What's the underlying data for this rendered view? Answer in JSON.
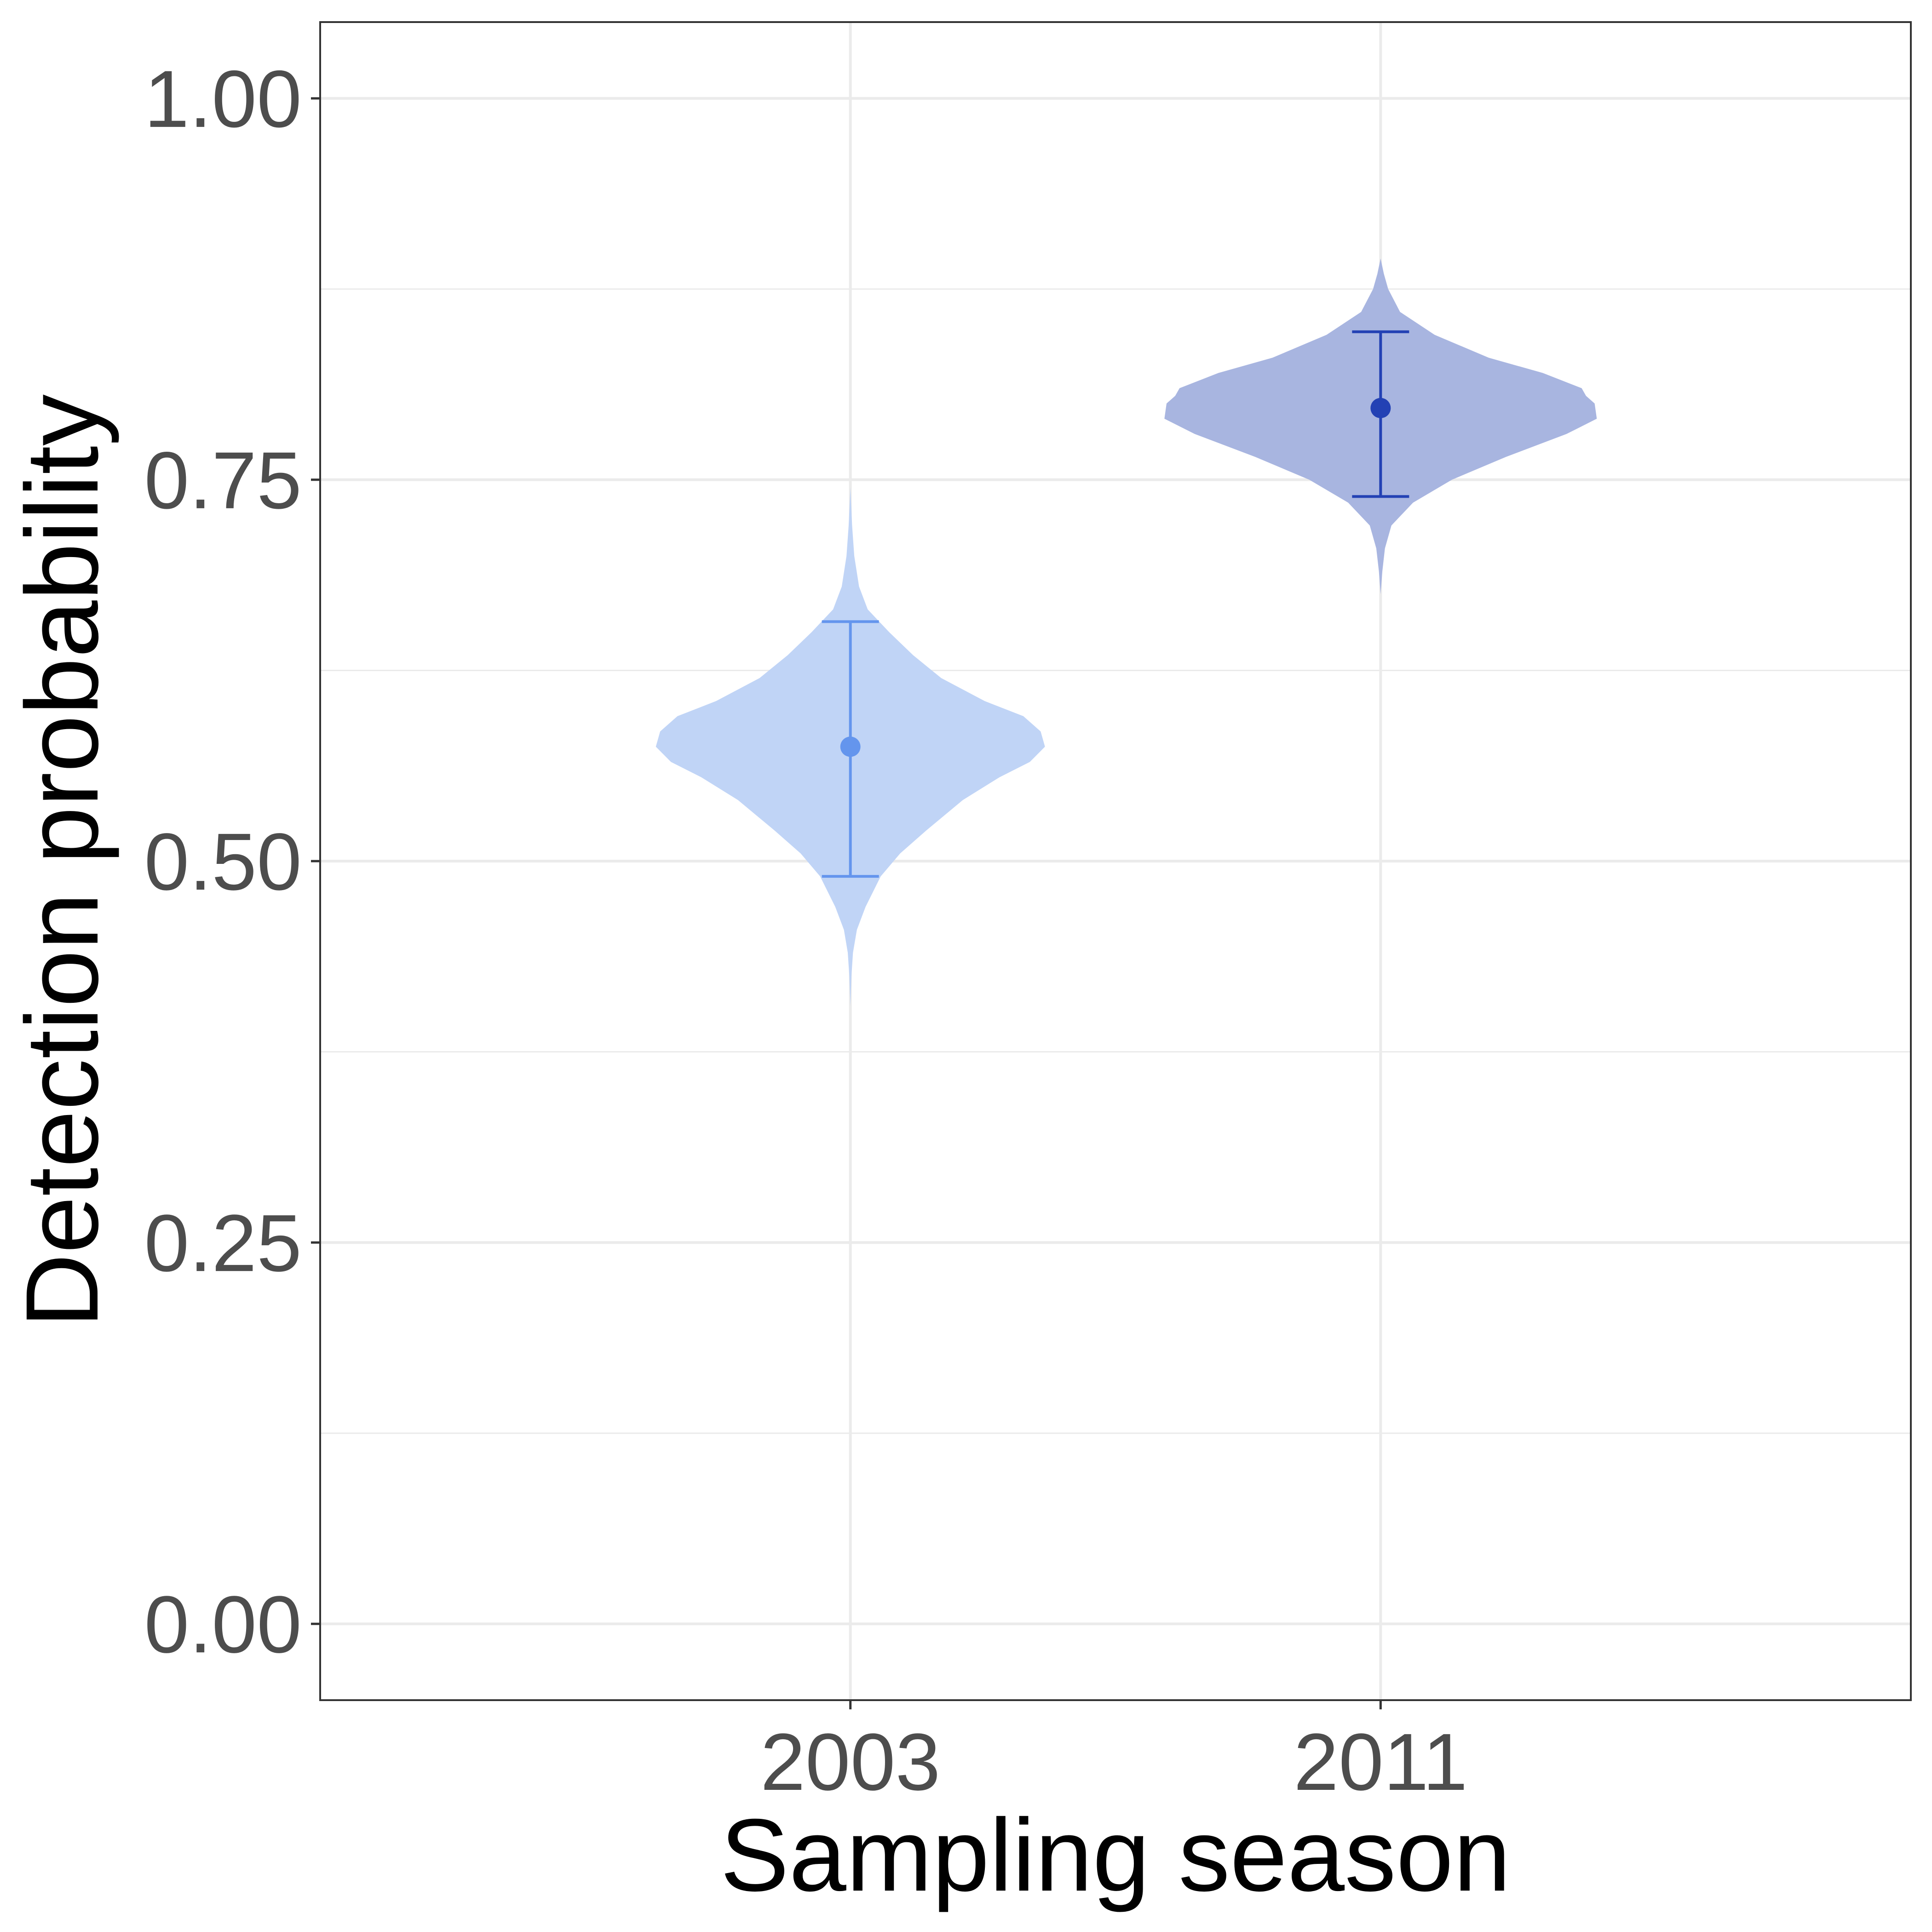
{
  "chart_data": {
    "type": "violin",
    "xlabel": "Sampling season",
    "ylabel": "Detection probability",
    "categories": [
      "2003",
      "2011"
    ],
    "ylim": [
      -0.05,
      1.05
    ],
    "yticks": [
      0.0,
      0.25,
      0.5,
      0.75,
      1.0
    ],
    "ytick_labels": [
      "0.00",
      "0.25",
      "0.50",
      "0.75",
      "1.00"
    ],
    "grid": true,
    "series": [
      {
        "category": "2003",
        "point": 0.575,
        "lower": 0.49,
        "upper": 0.657,
        "fill_color": "#c0d4f6",
        "line_color": "#6495ed",
        "density": [
          [
            0.405,
            0.0
          ],
          [
            0.425,
            0.005
          ],
          [
            0.44,
            0.012
          ],
          [
            0.455,
            0.03
          ],
          [
            0.47,
            0.07
          ],
          [
            0.49,
            0.14
          ],
          [
            0.505,
            0.23
          ],
          [
            0.52,
            0.35
          ],
          [
            0.54,
            0.52
          ],
          [
            0.555,
            0.69
          ],
          [
            0.565,
            0.83
          ],
          [
            0.575,
            0.9
          ],
          [
            0.585,
            0.88
          ],
          [
            0.595,
            0.8
          ],
          [
            0.605,
            0.62
          ],
          [
            0.62,
            0.42
          ],
          [
            0.635,
            0.29
          ],
          [
            0.65,
            0.18
          ],
          [
            0.665,
            0.08
          ],
          [
            0.68,
            0.04
          ],
          [
            0.7,
            0.018
          ],
          [
            0.72,
            0.008
          ],
          [
            0.745,
            0.0
          ]
        ]
      },
      {
        "category": "2011",
        "point": 0.797,
        "lower": 0.739,
        "upper": 0.847,
        "fill_color": "#a8b5e0",
        "line_color": "#2341b4",
        "density": [
          [
            0.675,
            0.0
          ],
          [
            0.69,
            0.008
          ],
          [
            0.705,
            0.02
          ],
          [
            0.72,
            0.05
          ],
          [
            0.735,
            0.15
          ],
          [
            0.75,
            0.33
          ],
          [
            0.765,
            0.58
          ],
          [
            0.78,
            0.86
          ],
          [
            0.79,
            1.0
          ],
          [
            0.8,
            0.99
          ],
          [
            0.805,
            0.95
          ],
          [
            0.81,
            0.93
          ],
          [
            0.82,
            0.75
          ],
          [
            0.83,
            0.5
          ],
          [
            0.845,
            0.25
          ],
          [
            0.86,
            0.09
          ],
          [
            0.875,
            0.035
          ],
          [
            0.885,
            0.015
          ],
          [
            0.895,
            0.0
          ]
        ]
      }
    ]
  }
}
